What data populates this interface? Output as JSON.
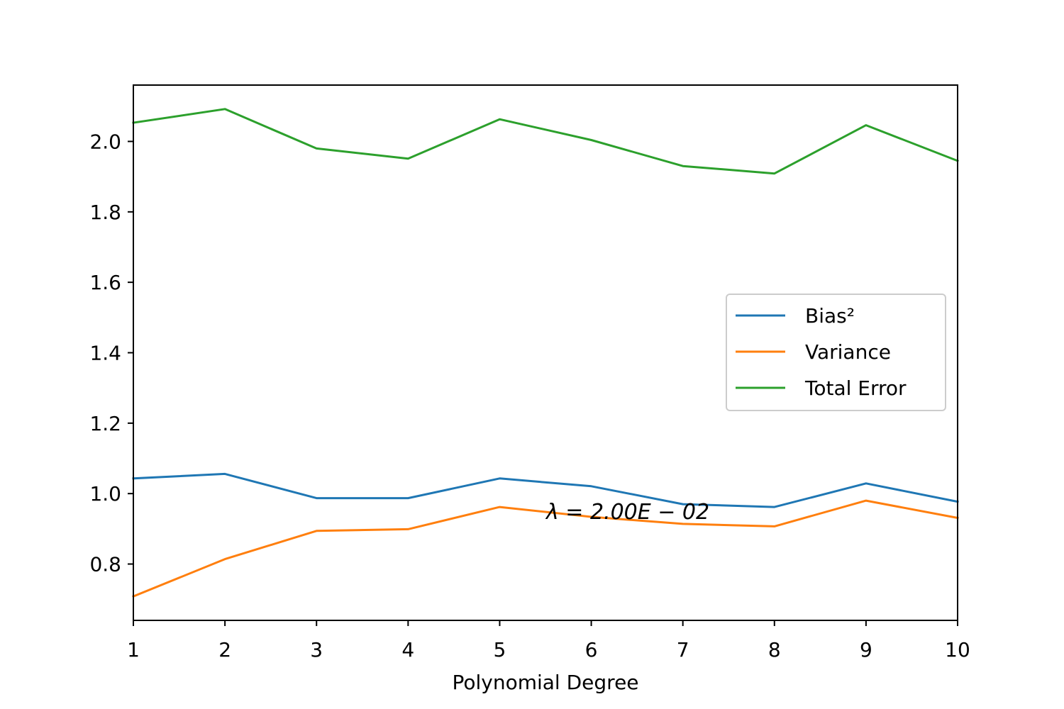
{
  "chart_data": {
    "type": "line",
    "title": "",
    "xlabel": "Polynomial Degree",
    "ylabel": "",
    "x": [
      1,
      2,
      3,
      4,
      5,
      6,
      7,
      8,
      9,
      10
    ],
    "xlim": [
      1,
      10
    ],
    "ylim": [
      0.64,
      2.16
    ],
    "xticks": [
      "1",
      "2",
      "3",
      "4",
      "5",
      "6",
      "7",
      "8",
      "9",
      "10"
    ],
    "yticks": [
      "0.8",
      "1.0",
      "1.2",
      "1.4",
      "1.6",
      "1.8",
      "2.0"
    ],
    "grid": false,
    "legend_position": "right",
    "series": [
      {
        "name": "Bias²",
        "color": "#1f77b4",
        "values": [
          1.043,
          1.056,
          0.987,
          0.987,
          1.043,
          1.021,
          0.97,
          0.962,
          1.029,
          0.977
        ]
      },
      {
        "name": "Variance",
        "color": "#ff7f0e",
        "values": [
          0.708,
          0.814,
          0.894,
          0.899,
          0.962,
          0.934,
          0.914,
          0.907,
          0.98,
          0.931
        ]
      },
      {
        "name": "Total Error",
        "color": "#2ca02c",
        "values": [
          2.053,
          2.092,
          1.98,
          1.951,
          2.063,
          2.004,
          1.93,
          1.909,
          2.046,
          1.945
        ]
      }
    ],
    "annotation": "λ = 2.00E − 02"
  }
}
